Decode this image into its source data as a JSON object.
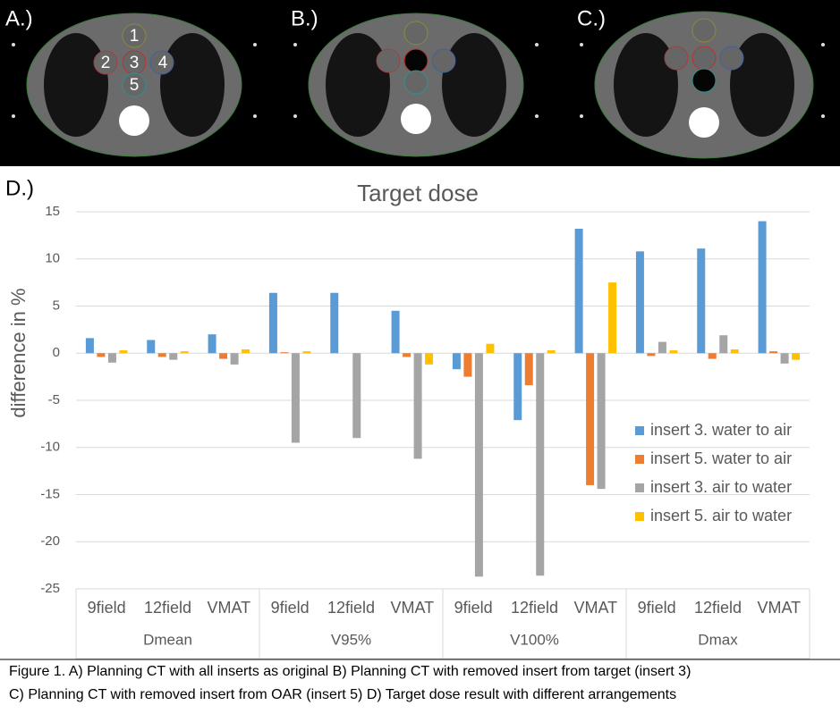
{
  "panels": [
    {
      "label": "A.)",
      "insert_labels": [
        "1",
        "2",
        "3",
        "4",
        "5"
      ]
    },
    {
      "label": "B.)"
    },
    {
      "label": "C.)"
    }
  ],
  "chart_label": "D.)",
  "chart_data": {
    "type": "bar",
    "title": "Target dose",
    "y_label": "difference in %",
    "categories": [
      "9field",
      "12field",
      "VMAT",
      "9field",
      "12field",
      "VMAT",
      "9field",
      "12field",
      "VMAT",
      "9field",
      "12field",
      "VMAT"
    ],
    "groups": [
      "Dmean",
      "V95%",
      "V100%",
      "Dmax"
    ],
    "series": [
      {
        "name": "insert 3. water to air",
        "color": "#5b9bd5",
        "values": [
          1.6,
          1.4,
          2.0,
          6.4,
          6.4,
          4.5,
          -1.7,
          -7.1,
          13.2,
          10.8,
          11.1,
          14.0
        ]
      },
      {
        "name": "insert 5. water to air",
        "color": "#ed7d31",
        "values": [
          -0.4,
          -0.4,
          -0.6,
          0.1,
          0,
          -0.4,
          -2.5,
          -3.4,
          -14.0,
          -0.3,
          -0.6,
          0.2
        ]
      },
      {
        "name": "insert 3. air to water",
        "color": "#a5a5a5",
        "values": [
          -1.0,
          -0.7,
          -1.2,
          -9.5,
          -9.0,
          -11.2,
          -23.7,
          -23.6,
          -14.4,
          1.2,
          1.9,
          -1.1
        ]
      },
      {
        "name": "insert 5. air to water",
        "color": "#ffc000",
        "values": [
          0.3,
          0.2,
          0.4,
          0.2,
          0,
          -1.2,
          1.0,
          0.3,
          7.5,
          0.3,
          0.4,
          -0.7
        ]
      }
    ],
    "ylim": [
      -25,
      15
    ],
    "yticks": [
      -25,
      -20,
      -15,
      -10,
      -5,
      0,
      5,
      10,
      15
    ],
    "grid": true,
    "legend": "right"
  },
  "caption": [
    "Figure 1. A) Planning CT with all inserts as original B) Planning CT with removed insert from target (insert 3)",
    "C) Planning CT with removed insert from OAR (insert 5) D) Target dose result with different arrangements"
  ]
}
